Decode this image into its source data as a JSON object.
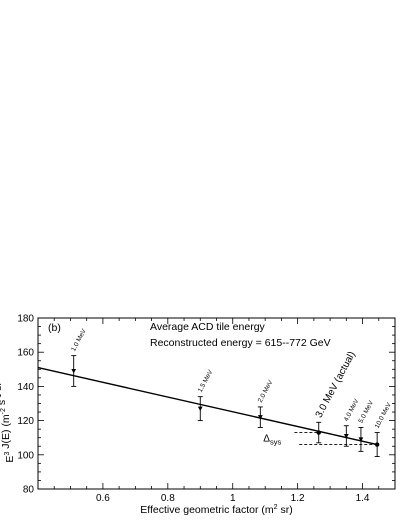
{
  "chart_data": {
    "type": "scatter",
    "panel_label": "(b)",
    "annotations": [
      "Average ACD tile energy",
      "Reconstructed energy = 615--772 GeV"
    ],
    "xlabel": {
      "main": "Effective geometric factor (m",
      "sup": "2",
      "tail": " sr)"
    },
    "ylabel": {
      "parts": [
        {
          "t": "E",
          "sup": false
        },
        {
          "t": "3",
          "sup": true
        },
        {
          "t": " J(E) (m",
          "sup": false
        },
        {
          "t": "-2",
          "sup": true
        },
        {
          "t": " s",
          "sup": false
        },
        {
          "t": "-1",
          "sup": true
        },
        {
          "t": " sr",
          "sup": false
        },
        {
          "t": "-1",
          "sup": true
        },
        {
          "t": " GeV",
          "sup": false
        },
        {
          "t": "2",
          "sup": true
        },
        {
          "t": ")",
          "sup": false
        }
      ]
    },
    "xlim": [
      0.4,
      1.5
    ],
    "ylim": [
      80,
      180
    ],
    "x_ticks": [
      {
        "v": 0.6,
        "label": "0.6"
      },
      {
        "v": 0.8,
        "label": "0.8"
      },
      {
        "v": 1.0,
        "label": "1"
      },
      {
        "v": 1.2,
        "label": "1.2"
      },
      {
        "v": 1.4,
        "label": "1.4"
      }
    ],
    "y_ticks": [
      {
        "v": 80,
        "label": "80"
      },
      {
        "v": 100,
        "label": "100"
      },
      {
        "v": 120,
        "label": "120"
      },
      {
        "v": 140,
        "label": "140"
      },
      {
        "v": 160,
        "label": "160"
      },
      {
        "v": 180,
        "label": "180"
      }
    ],
    "points": [
      {
        "label": "1.0 MeV",
        "x": 0.51,
        "y": 149,
        "err": 9,
        "marker": "triangle"
      },
      {
        "label": "1.5 MeV",
        "x": 0.9,
        "y": 127,
        "err": 7,
        "marker": "triangle"
      },
      {
        "label": "2.0 MeV",
        "x": 1.085,
        "y": 122,
        "err": 6,
        "marker": "triangle"
      },
      {
        "label": "3.0 MeV (actual)",
        "x": 1.265,
        "y": 113,
        "err": 6,
        "marker": "circle",
        "big": true
      },
      {
        "label": "4.0 MeV",
        "x": 1.35,
        "y": 111,
        "err": 6,
        "marker": "triangle"
      },
      {
        "label": "5.0 MeV",
        "x": 1.395,
        "y": 109,
        "err": 7,
        "marker": "triangle"
      },
      {
        "label": "10.0 MeV",
        "x": 1.445,
        "y": 106,
        "err": 7,
        "marker": "circle"
      }
    ],
    "fit_line": {
      "x": [
        0.4,
        1.445
      ],
      "y": [
        151,
        106
      ]
    },
    "sys_band": {
      "label_main": "Δ",
      "label_sub": "sys",
      "y_upper": 113,
      "y_lower": 106
    },
    "colors": {
      "ink": "#000000",
      "background": "#ffffff"
    }
  }
}
